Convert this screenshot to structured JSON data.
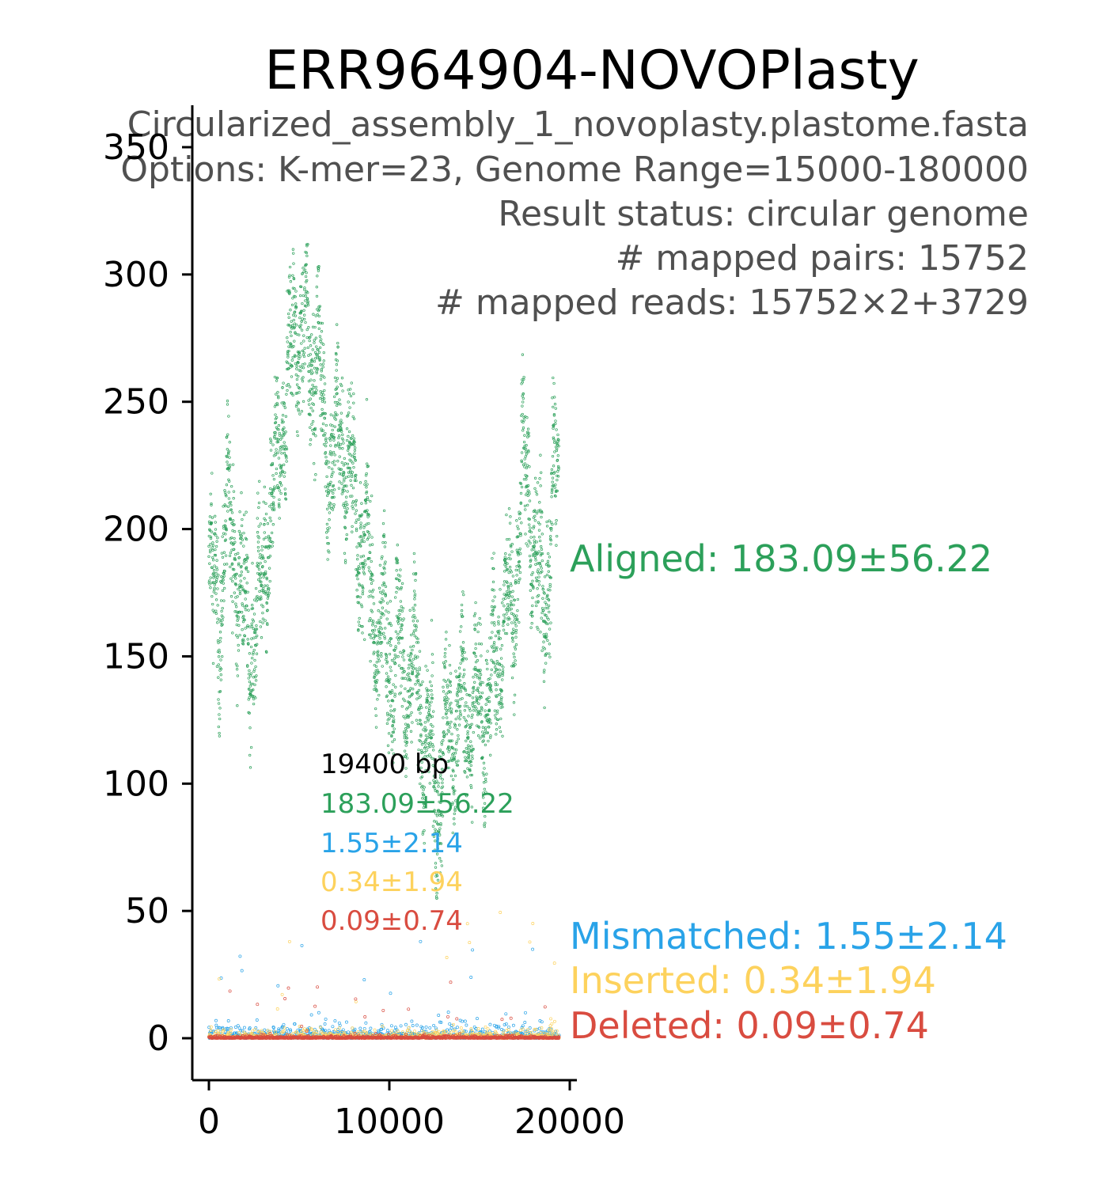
{
  "chart_data": {
    "type": "scatter",
    "title": "ERR964904-NOVOPlasty",
    "subtitle_lines": [
      "Circularized_assembly_1_novoplasty.plastome.fasta",
      "Options: K-mer=23, Genome Range=15000-180000",
      "Result status: circular genome",
      "# mapped pairs: 15752",
      "# mapped reads: 15752×2+3729"
    ],
    "xlabel": "",
    "ylabel": "",
    "xlim": [
      -1000,
      20400
    ],
    "ylim": [
      -16,
      357
    ],
    "x_ticks": [
      0,
      10000,
      20000
    ],
    "x_tick_labels": [
      "0",
      "10000",
      "20000"
    ],
    "y_ticks": [
      0,
      50,
      100,
      150,
      200,
      250,
      300,
      350
    ],
    "y_tick_labels": [
      "0",
      "50",
      "100",
      "150",
      "200",
      "250",
      "300",
      "350"
    ],
    "grid": false,
    "inset_stats": {
      "length": "19400 bp",
      "aligned": "183.09±56.22",
      "mismatched": "1.55±2.14",
      "inserted": "0.34±1.94",
      "deleted": "0.09±0.74"
    },
    "series": [
      {
        "name": "Aligned",
        "label": "Aligned: 183.09±56.22",
        "color": "#2ca05a",
        "mean": 183.09,
        "sd": 56.22,
        "profile_x": [
          0,
          300,
          600,
          1000,
          1300,
          1700,
          2000,
          2400,
          2800,
          3200,
          3600,
          4000,
          4400,
          4800,
          5200,
          5600,
          6000,
          6300,
          6700,
          7000,
          7400,
          7700,
          8100,
          8500,
          8900,
          9300,
          9700,
          10100,
          10500,
          10900,
          11300,
          11700,
          12000,
          12300,
          12600,
          12900,
          13200,
          13500,
          13800,
          14100,
          14400,
          14700,
          15000,
          15300,
          15600,
          15900,
          16200,
          16500,
          16800,
          17100,
          17400,
          17700,
          18000,
          18300,
          18600,
          18900,
          19200,
          19400
        ],
        "profile_y": [
          180,
          172,
          168,
          205,
          200,
          180,
          160,
          160,
          165,
          200,
          205,
          240,
          255,
          285,
          275,
          265,
          280,
          240,
          230,
          230,
          235,
          230,
          205,
          200,
          180,
          160,
          160,
          150,
          155,
          140,
          140,
          135,
          115,
          110,
          95,
          105,
          120,
          125,
          125,
          130,
          130,
          125,
          135,
          130,
          130,
          150,
          160,
          165,
          170,
          190,
          220,
          220,
          195,
          175,
          175,
          190,
          220,
          215
        ]
      },
      {
        "name": "Mismatched",
        "label": "Mismatched: 1.55±2.14",
        "color": "#29a3e8",
        "mean": 1.55,
        "sd": 2.14
      },
      {
        "name": "Inserted",
        "label": "Inserted: 0.34±1.94",
        "color": "#fdd25d",
        "mean": 0.34,
        "sd": 1.94
      },
      {
        "name": "Deleted",
        "label": "Deleted: 0.09±0.74",
        "color": "#d94c40",
        "mean": 0.09,
        "sd": 0.74
      }
    ]
  }
}
